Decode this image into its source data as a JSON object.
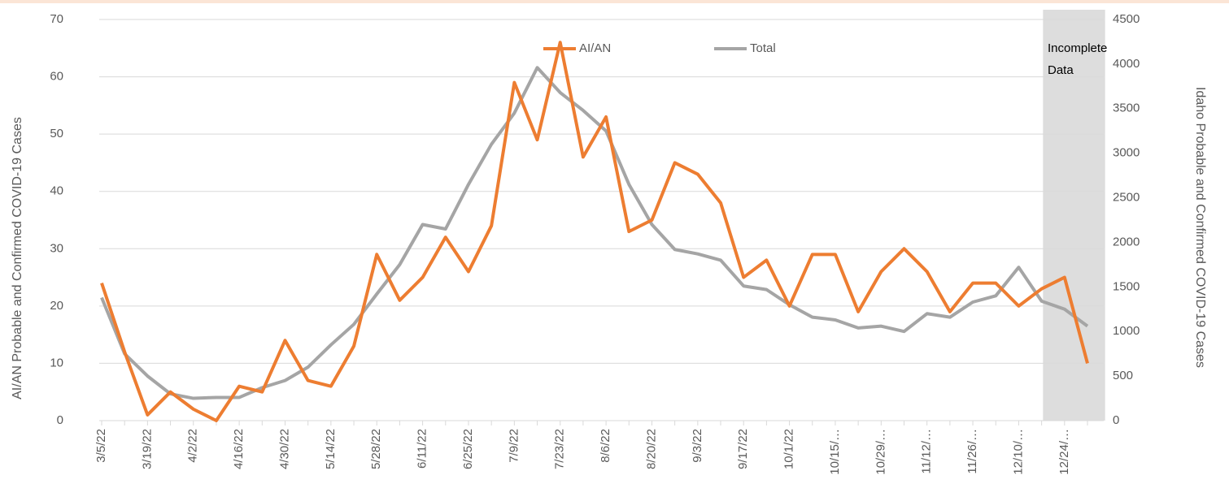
{
  "chart_data": {
    "type": "line",
    "y_label": "AI/AN Probable and Confirmed COVID-19 Cases",
    "y2_label": "Idaho Probable and Confirmed COVID-19 Cases",
    "annotation": "Incomplete Data",
    "categories": [
      "3/5/22",
      null,
      "3/19/22",
      null,
      "4/2/22",
      null,
      "4/16/22",
      null,
      "4/30/22",
      null,
      "5/14/22",
      null,
      "5/28/22",
      null,
      "6/11/22",
      null,
      "6/25/22",
      null,
      "7/9/22",
      null,
      "7/23/22",
      null,
      "8/6/22",
      null,
      "8/20/22",
      null,
      "9/3/22",
      null,
      "9/17/22",
      null,
      "10/1/22",
      null,
      "10/15/…",
      null,
      "10/29/…",
      null,
      "11/12/…",
      null,
      "11/26/…",
      null,
      "12/10/…",
      null,
      "12/24/…",
      null
    ],
    "series": [
      {
        "name": "AI/AN",
        "color": "#ed7d31",
        "values": [
          24,
          12,
          1,
          5,
          2,
          0,
          6,
          5,
          14,
          7,
          6,
          13,
          29,
          21,
          25,
          32,
          26,
          34,
          59,
          49,
          66,
          46,
          53,
          33,
          35,
          45,
          43,
          38,
          25,
          28,
          20,
          29,
          29,
          19,
          26,
          30,
          26,
          19,
          24,
          24,
          20,
          23,
          25,
          10
        ]
      },
      {
        "name": "Total",
        "color": "#a5a5a5",
        "axis": "y2",
        "values": [
          1380,
          750,
          500,
          300,
          250,
          260,
          260,
          370,
          450,
          600,
          850,
          1080,
          1420,
          1750,
          2200,
          2150,
          2650,
          3100,
          3450,
          3960,
          3680,
          3480,
          3250,
          2650,
          2200,
          1920,
          1870,
          1800,
          1510,
          1470,
          1300,
          1160,
          1130,
          1040,
          1060,
          1000,
          1200,
          1160,
          1330,
          1400,
          1720,
          1340,
          1250,
          1060
        ]
      }
    ],
    "ylim": [
      0,
      70
    ],
    "yticks": [
      0,
      10,
      20,
      30,
      40,
      50,
      60,
      70
    ],
    "y2lim": [
      0,
      4500
    ],
    "y2ticks": [
      0,
      500,
      1000,
      1500,
      2000,
      2500,
      3000,
      3500,
      4000,
      4500
    ],
    "grid": true,
    "legend": "top"
  }
}
